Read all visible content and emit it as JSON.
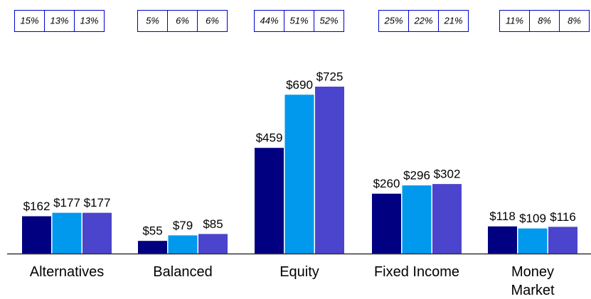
{
  "chart_data": {
    "type": "bar",
    "categories": [
      "Alternatives",
      "Balanced",
      "Equity",
      "Fixed Income",
      "Money\nMarket"
    ],
    "series": [
      {
        "color": "#000080",
        "values": [
          162,
          55,
          459,
          260,
          118
        ],
        "value_labels": [
          "$162",
          "$55",
          "$459",
          "$260",
          "$118"
        ]
      },
      {
        "color": "#0099ee",
        "values": [
          177,
          79,
          690,
          296,
          109
        ],
        "value_labels": [
          "$177",
          "$79",
          "$690",
          "$296",
          "$109"
        ]
      },
      {
        "color": "#4b44cc",
        "values": [
          177,
          85,
          725,
          302,
          116
        ],
        "value_labels": [
          "$177",
          "$85",
          "$725",
          "$302",
          "$116"
        ]
      }
    ],
    "shares": [
      [
        15,
        13,
        13
      ],
      [
        5,
        6,
        6
      ],
      [
        44,
        51,
        52
      ],
      [
        25,
        22,
        21
      ],
      [
        11,
        8,
        8
      ]
    ],
    "share_labels": [
      [
        "15%",
        "13%",
        "13%"
      ],
      [
        "5%",
        "6%",
        "6%"
      ],
      [
        "44%",
        "51%",
        "52%"
      ],
      [
        "25%",
        "22%",
        "21%"
      ],
      [
        "11%",
        "8%",
        "8%"
      ]
    ]
  }
}
